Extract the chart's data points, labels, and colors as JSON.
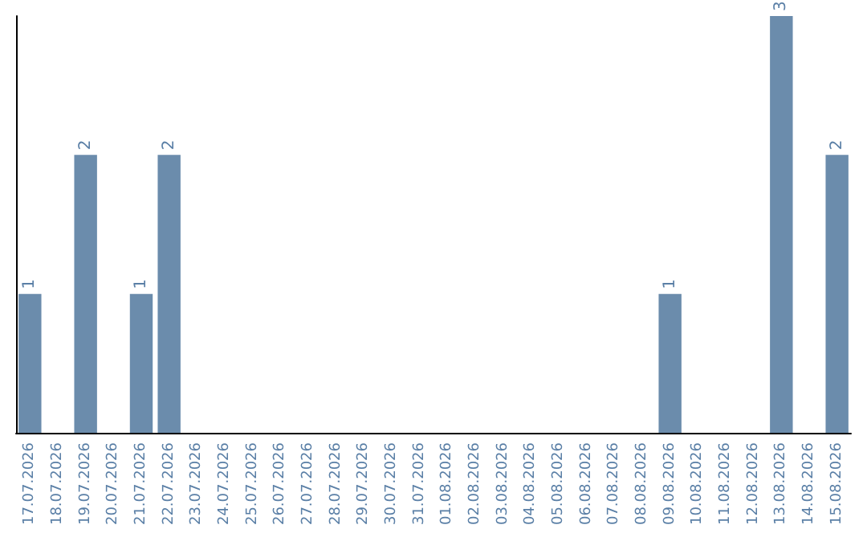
{
  "chart_data": {
    "type": "bar",
    "categories": [
      "17.07.2026",
      "18.07.2026",
      "19.07.2026",
      "20.07.2026",
      "21.07.2026",
      "22.07.2026",
      "23.07.2026",
      "24.07.2026",
      "25.07.2026",
      "26.07.2026",
      "27.07.2026",
      "28.07.2026",
      "29.07.2026",
      "30.07.2026",
      "31.07.2026",
      "01.08.2026",
      "02.08.2026",
      "03.08.2026",
      "04.08.2026",
      "05.08.2026",
      "06.08.2026",
      "07.08.2026",
      "08.08.2026",
      "09.08.2026",
      "10.08.2026",
      "11.08.2026",
      "12.08.2026",
      "13.08.2026",
      "14.08.2026",
      "15.08.2026"
    ],
    "values": [
      1,
      0,
      2,
      0,
      1,
      2,
      0,
      0,
      0,
      0,
      0,
      0,
      0,
      0,
      0,
      0,
      0,
      0,
      0,
      0,
      0,
      0,
      0,
      1,
      0,
      0,
      0,
      3,
      0,
      2
    ],
    "value_labels": [
      "1",
      null,
      "2",
      null,
      "1",
      "2",
      null,
      null,
      null,
      null,
      null,
      null,
      null,
      null,
      null,
      null,
      null,
      null,
      null,
      null,
      null,
      null,
      null,
      "1",
      null,
      null,
      null,
      "3",
      null,
      "2"
    ],
    "color": "#6b8cac",
    "tick_labels": "x",
    "grid": false
  }
}
